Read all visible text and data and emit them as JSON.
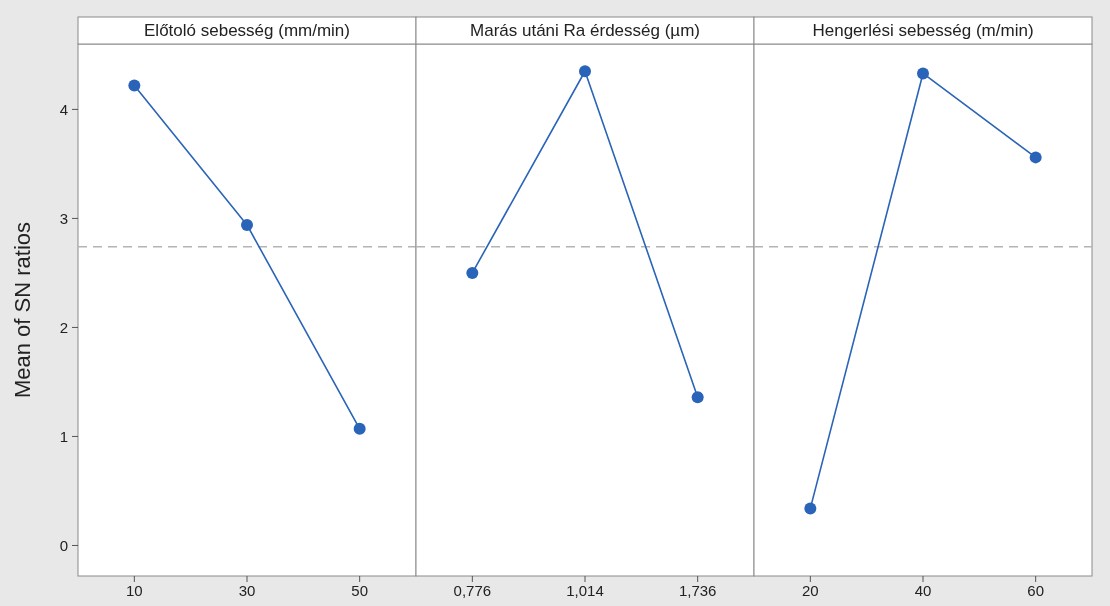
{
  "chart_data": [
    {
      "type": "line",
      "title": "Előtoló sebesség (mm/min)",
      "ylabel": "Mean of SN ratios",
      "categories": [
        "10",
        "30",
        "50"
      ],
      "series": [
        {
          "color": "#2a64b8",
          "values": [
            4.22,
            2.94,
            1.07
          ]
        }
      ],
      "ylim": [
        -0.28,
        4.6
      ],
      "yticks": [
        0,
        1,
        2,
        3,
        4
      ],
      "marker": "circle",
      "grid": false,
      "ref_lines": [
        {
          "axis": "y",
          "value": 2.74,
          "color": "#b4b4b4",
          "line_style": "dashed"
        }
      ]
    },
    {
      "type": "line",
      "title": "Marás utáni Ra érdesség (µm)",
      "categories": [
        "0,776",
        "1,014",
        "1,736"
      ],
      "series": [
        {
          "color": "#2a64b8",
          "values": [
            2.5,
            4.35,
            1.36
          ]
        }
      ],
      "ylim": [
        -0.28,
        4.6
      ],
      "tick_labels": "x",
      "marker": "circle",
      "grid": false,
      "ref_lines": [
        {
          "axis": "y",
          "value": 2.74,
          "color": "#b4b4b4",
          "line_style": "dashed"
        }
      ]
    },
    {
      "type": "line",
      "title": "Hengerlési sebesség (m/min)",
      "categories": [
        "20",
        "40",
        "60"
      ],
      "series": [
        {
          "color": "#2a64b8",
          "values": [
            0.34,
            4.33,
            3.56
          ]
        }
      ],
      "ylim": [
        -0.28,
        4.6
      ],
      "tick_labels": "x",
      "marker": "circle",
      "grid": false,
      "ref_lines": [
        {
          "axis": "y",
          "value": 2.74,
          "color": "#b4b4b4",
          "line_style": "dashed"
        }
      ]
    }
  ]
}
